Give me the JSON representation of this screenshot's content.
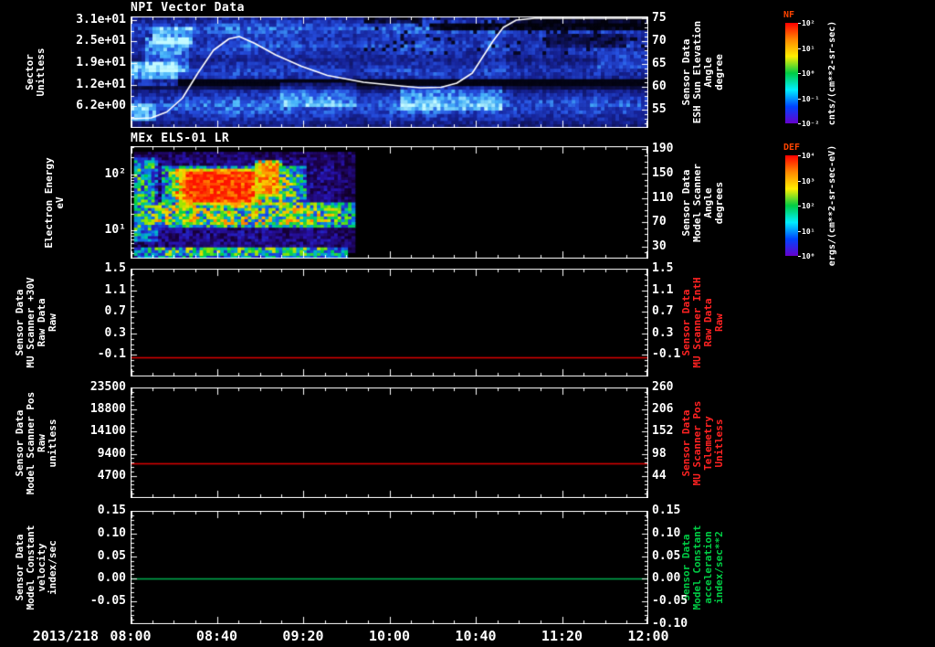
{
  "x_axis": {
    "date_label": "2013/218",
    "tick_labels": [
      "08:00",
      "08:40",
      "09:20",
      "10:00",
      "10:40",
      "11:20",
      "12:00"
    ]
  },
  "colorbars": [
    {
      "label": "NF",
      "label_color": "#ff4400",
      "units": "cnts/(cm**2-sr-sec)",
      "tick_labels": [
        "10²",
        "10¹",
        "10⁰",
        "10⁻¹",
        "10⁻²"
      ],
      "gradient": [
        "#ff0000",
        "#ff8800",
        "#ffee00",
        "#00cc44",
        "#00eeff",
        "#0044ff",
        "#6600cc"
      ]
    },
    {
      "label": "DEF",
      "label_color": "#ff4400",
      "units": "ergs/(cm**2-sr-sec-eV)",
      "tick_labels": [
        "10⁴",
        "10³",
        "10²",
        "10¹",
        "10⁰"
      ],
      "gradient": [
        "#ff0000",
        "#ff8800",
        "#ffee00",
        "#00cc44",
        "#00eeff",
        "#0044ff",
        "#6600cc"
      ]
    }
  ],
  "chart_data": [
    {
      "type": "heatmap",
      "title": "NPI Vector Data",
      "ylabel_left": "Sector\nUnitless",
      "left_axis": {
        "range": [
          0,
          32
        ],
        "minor_div": 2,
        "tick_values": [
          31,
          24.8,
          18.6,
          12.4,
          6.2
        ],
        "tick_labels": [
          "3.1e+01",
          "2.5e+01",
          "1.9e+01",
          "1.2e+01",
          "6.2e+00"
        ]
      },
      "ylabel_right": "Sensor Data\nESH Sun Elevation\nAngle\ndegree",
      "right_axis": {
        "range": [
          51,
          75.4
        ],
        "minor_div": 5,
        "tick_values": [
          75,
          70,
          65,
          60,
          55
        ],
        "tick_labels": [
          "75",
          "70",
          "65",
          "60",
          "55"
        ]
      },
      "heatmap": {
        "colormap": "blue",
        "rows": 32,
        "cols": 142,
        "seed": 7,
        "row_base": [
          0.3,
          0.38,
          0.45,
          0.5,
          0.46,
          0.42,
          0.38,
          0.42,
          0.46,
          0.42,
          0.38,
          0.34,
          0.3,
          0.34,
          0.38,
          0.42,
          0.4,
          0.36,
          0.02,
          0.02,
          0.15,
          0.32,
          0.38,
          0.44,
          0.5,
          0.54,
          0.5,
          0.46,
          0.4,
          0.36,
          0.3,
          0.26
        ],
        "bright": [
          {
            "x0": 0.04,
            "x1": 0.12,
            "y0": 0.08,
            "y1": 0.24,
            "boost": 0.35
          },
          {
            "x0": 0.03,
            "x1": 0.11,
            "y0": 0.2,
            "y1": 0.5,
            "boost": 0.28
          },
          {
            "x0": 0.0,
            "x1": 0.09,
            "y0": 0.42,
            "y1": 0.62,
            "boost": 0.38
          },
          {
            "x0": 0.0,
            "x1": 0.05,
            "y0": 0.78,
            "y1": 0.93,
            "boost": 0.35
          },
          {
            "x0": 0.29,
            "x1": 0.44,
            "y0": 0.6,
            "y1": 0.8,
            "boost": 0.22
          },
          {
            "x0": 0.52,
            "x1": 0.72,
            "y0": 0.64,
            "y1": 0.84,
            "boost": 0.24
          },
          {
            "x0": 0.9,
            "x1": 1.0,
            "y0": 0.3,
            "y1": 0.46,
            "boost": 0.16
          }
        ],
        "dark": [
          {
            "x0": 0.58,
            "x1": 1.0,
            "y0": 0.05,
            "y1": 0.14,
            "drop": 0.5
          },
          {
            "x0": 0.73,
            "x1": 1.0,
            "y0": 0.0,
            "y1": 0.05,
            "drop": 0.3
          },
          {
            "x0": 0.8,
            "x1": 0.96,
            "y0": 0.17,
            "y1": 0.27,
            "drop": 0.25
          },
          {
            "x0": 0.45,
            "x1": 0.56,
            "y0": 0.0,
            "y1": 0.07,
            "drop": 0.25
          }
        ],
        "speckle": {
          "x0": 0.45,
          "x1": 1.0,
          "y0": 0.0,
          "y1": 0.35,
          "p": 0.1,
          "factor": 0.15
        }
      },
      "overlay_line": {
        "color": "#ffffff",
        "yrange": [
          51,
          75.4
        ],
        "points": [
          [
            0.0,
            53
          ],
          [
            0.04,
            53.2
          ],
          [
            0.07,
            54.5
          ],
          [
            0.1,
            57.5
          ],
          [
            0.13,
            63
          ],
          [
            0.16,
            68
          ],
          [
            0.19,
            70.5
          ],
          [
            0.21,
            71
          ],
          [
            0.24,
            69.5
          ],
          [
            0.28,
            67
          ],
          [
            0.33,
            64.5
          ],
          [
            0.38,
            62.5
          ],
          [
            0.45,
            61
          ],
          [
            0.52,
            60.2
          ],
          [
            0.56,
            59.8
          ],
          [
            0.6,
            59.9
          ],
          [
            0.63,
            60.8
          ],
          [
            0.66,
            63
          ],
          [
            0.68,
            66.5
          ],
          [
            0.7,
            70
          ],
          [
            0.72,
            73
          ],
          [
            0.745,
            74.6
          ],
          [
            0.78,
            75
          ],
          [
            1.0,
            75
          ]
        ]
      }
    },
    {
      "type": "heatmap",
      "title": "MEx ELS-01 LR",
      "ylabel_left": "Electron Energy\neV",
      "left_axis": {
        "range": [
          0.5,
          2.5
        ],
        "log": true,
        "tick_values": [
          2,
          1
        ],
        "tick_labels": [
          "10²",
          "10¹"
        ]
      },
      "ylabel_right": "Sensor Data\nModel Scanner\nAngle\ndegrees",
      "right_axis": {
        "range": [
          10,
          195
        ],
        "minor_div": 4,
        "tick_values": [
          190,
          150,
          110,
          70,
          30
        ],
        "tick_labels": [
          "190",
          "150",
          "110",
          "70",
          "30"
        ]
      },
      "heatmap": {
        "colormap": "rainbow",
        "rows": 40,
        "cols": 150,
        "seed": 13,
        "data_extent": 0.43,
        "blobs": [
          {
            "x0": 0.005,
            "x1": 0.43,
            "y0": 0.04,
            "y1": 0.96,
            "v": 0.17
          },
          {
            "x0": 0.005,
            "x1": 0.43,
            "y0": 0.5,
            "y1": 0.72,
            "v": 0.58
          },
          {
            "x0": 0.06,
            "x1": 0.34,
            "y0": 0.18,
            "y1": 0.58,
            "v": 0.55
          },
          {
            "x0": 0.09,
            "x1": 0.25,
            "y0": 0.2,
            "y1": 0.52,
            "v": 0.97
          },
          {
            "x0": 0.24,
            "x1": 0.29,
            "y0": 0.12,
            "y1": 0.46,
            "v": 0.82
          },
          {
            "x0": 0.005,
            "x1": 0.05,
            "y0": 0.1,
            "y1": 0.85,
            "v": 0.45
          },
          {
            "x0": 0.005,
            "x1": 0.42,
            "y0": 0.9,
            "y1": 0.99,
            "v": 0.5
          }
        ]
      }
    },
    {
      "type": "line",
      "ylabel_left": "Sensor Data\nMU Scanner +30V\nRaw Data\nRaw",
      "left_axis": {
        "range": [
          -0.5,
          1.5
        ],
        "minor_div": 4,
        "tick_values": [
          1.5,
          1.1,
          0.7,
          0.3,
          -0.1
        ],
        "tick_labels": [
          "1.5",
          "1.1",
          "0.7",
          "0.3",
          "-0.1"
        ]
      },
      "ylabel_right": "Sensor Data\nMU Scanner IntH\nRaw Data\nRaw",
      "right_label_color": "#ff2222",
      "right_axis": {
        "range": [
          -0.5,
          1.5
        ],
        "minor_div": 4,
        "tick_values": [
          1.5,
          1.1,
          0.7,
          0.3,
          -0.1
        ],
        "tick_labels": [
          "1.5",
          "1.1",
          "0.7",
          "0.3",
          "-0.1"
        ]
      },
      "series": {
        "color": "#dd0000",
        "value": -0.15
      }
    },
    {
      "type": "line",
      "ylabel_left": "Sensor Data\nModel Scanner Pos\nRaw\nunitless",
      "left_axis": {
        "range": [
          0,
          23500
        ],
        "minor_div": 5,
        "tick_values": [
          23500,
          18800,
          14100,
          9400,
          4700
        ],
        "tick_labels": [
          "23500",
          "18800",
          "14100",
          "9400",
          "4700"
        ]
      },
      "ylabel_right": "Sensor Data\nMU Scanner Pos\nTelemetry\nUnitless",
      "right_label_color": "#ff2222",
      "right_axis": {
        "range": [
          -10,
          260
        ],
        "minor_div": 5,
        "tick_values": [
          260,
          206,
          152,
          98,
          44
        ],
        "tick_labels": [
          "260",
          "206",
          "152",
          "98",
          "44"
        ]
      },
      "series": {
        "color": "#dd0000",
        "value": 7400
      }
    },
    {
      "type": "line",
      "ylabel_left": "Sensor Data\nModel Constant\nvelocity\nindex/sec",
      "left_axis": {
        "range": [
          -0.1,
          0.15
        ],
        "minor_div": 5,
        "tick_values": [
          0.15,
          0.1,
          0.05,
          0.0,
          -0.05
        ],
        "tick_labels": [
          "0.15",
          "0.10",
          "0.05",
          "0.00",
          "-0.05"
        ]
      },
      "ylabel_right": "Sensor Data\nModel Constant\nacceleration\nindex/sec**2",
      "right_label_color": "#00cc44",
      "right_axis": {
        "range": [
          -0.1,
          0.15
        ],
        "minor_div": 5,
        "tick_values": [
          0.15,
          0.1,
          0.05,
          0.0,
          -0.05,
          -0.1
        ],
        "tick_labels": [
          "0.15",
          "0.10",
          "0.05",
          "0.00",
          "-0.05",
          "-0.10"
        ]
      },
      "series": {
        "color": "#00b050",
        "value": 0.0
      }
    }
  ]
}
